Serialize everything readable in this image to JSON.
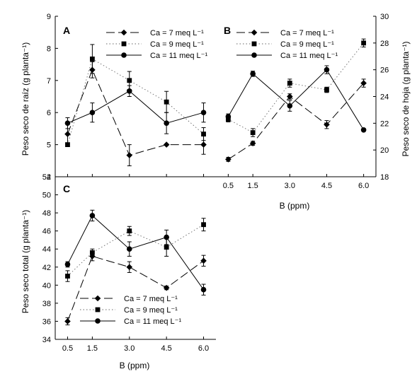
{
  "chart_data": [
    {
      "panel": "A",
      "type": "line",
      "x": [
        0.5,
        1.5,
        3.0,
        4.5,
        6.0
      ],
      "xticklabels": [
        "",
        "",
        "",
        "",
        ""
      ],
      "xlabel": "",
      "ylabel": "Peso seco de raíz (g planta⁻¹)",
      "ylim": [
        4,
        9
      ],
      "yticks": [
        4,
        5,
        6,
        7,
        8,
        9
      ],
      "y_axis_side": "left",
      "legend": "top-right",
      "series": [
        {
          "name": "Ca = 7 meq L⁻¹",
          "values": [
            5.33,
            7.33,
            4.67,
            5.0,
            5.0
          ],
          "errors": [
            0.3,
            0.25,
            0.33,
            0.0,
            0.3
          ],
          "line_style": "long-dash",
          "marker": "diamond"
        },
        {
          "name": "Ca = 9 meq L⁻¹",
          "values": [
            5.0,
            7.67,
            7.0,
            6.33,
            5.33
          ],
          "errors": [
            0.0,
            0.45,
            0.28,
            0.33,
            0.2
          ],
          "line_style": "dotted",
          "marker": "square"
        },
        {
          "name": "Ca = 11 meq L⁻¹",
          "values": [
            5.67,
            6.0,
            6.67,
            5.67,
            6.0
          ],
          "errors": [
            0.17,
            0.3,
            0.17,
            0.33,
            0.3
          ],
          "line_style": "solid",
          "marker": "circle"
        }
      ]
    },
    {
      "panel": "B",
      "type": "line",
      "x": [
        0.5,
        1.5,
        3.0,
        4.5,
        6.0
      ],
      "xticklabels": [
        "0.5",
        "1.5",
        "3.0",
        "4.5",
        "6.0"
      ],
      "xlabel": "B (ppm)",
      "ylabel": "Peso seco de hoja (g planta⁻¹)",
      "ylim": [
        18,
        30
      ],
      "yticks": [
        18,
        20,
        22,
        24,
        26,
        28,
        30
      ],
      "y_axis_side": "right",
      "legend": "top-left",
      "series": [
        {
          "name": "Ca = 7 meq L⁻¹",
          "values": [
            19.3,
            20.5,
            24.0,
            21.9,
            25.0
          ],
          "errors": [
            0.15,
            0.15,
            0.2,
            0.3,
            0.3
          ],
          "line_style": "long-dash",
          "marker": "diamond"
        },
        {
          "name": "Ca = 9 meq L⁻¹",
          "values": [
            22.3,
            21.3,
            25.0,
            24.5,
            28.0
          ],
          "errors": [
            0.2,
            0.3,
            0.3,
            0.2,
            0.3
          ],
          "line_style": "dotted",
          "marker": "square"
        },
        {
          "name": "Ca = 11 meq L⁻¹",
          "values": [
            22.5,
            25.7,
            23.3,
            26.0,
            21.5
          ],
          "errors": [
            0.2,
            0.2,
            0.4,
            0.3,
            0.1
          ],
          "line_style": "solid",
          "marker": "circle"
        }
      ]
    },
    {
      "panel": "C",
      "type": "line",
      "x": [
        0.5,
        1.5,
        3.0,
        4.5,
        6.0
      ],
      "xticklabels": [
        "0.5",
        "1.5",
        "3.0",
        "4.5",
        "6.0"
      ],
      "xlabel": "B (ppm)",
      "ylabel": "Peso seco total (g planta⁻¹)",
      "ylim": [
        34,
        52
      ],
      "yticks": [
        34,
        36,
        38,
        40,
        42,
        44,
        46,
        48,
        50,
        52
      ],
      "y_axis_side": "left",
      "legend": "bottom-left",
      "series": [
        {
          "name": "Ca = 7 meq L⁻¹",
          "values": [
            36.0,
            43.2,
            42.0,
            39.7,
            42.7
          ],
          "errors": [
            0.4,
            0.5,
            0.6,
            0.2,
            0.6
          ],
          "line_style": "long-dash",
          "marker": "diamond"
        },
        {
          "name": "Ca = 9 meq L⁻¹",
          "values": [
            41.0,
            43.6,
            46.0,
            44.2,
            46.7
          ],
          "errors": [
            0.6,
            0.4,
            0.5,
            1.0,
            0.7
          ],
          "line_style": "dotted",
          "marker": "square"
        },
        {
          "name": "Ca = 11 meq L⁻¹",
          "values": [
            42.3,
            47.7,
            44.0,
            45.3,
            39.5
          ],
          "errors": [
            0.3,
            0.6,
            0.8,
            0.8,
            0.6
          ],
          "line_style": "solid",
          "marker": "circle"
        }
      ]
    }
  ]
}
